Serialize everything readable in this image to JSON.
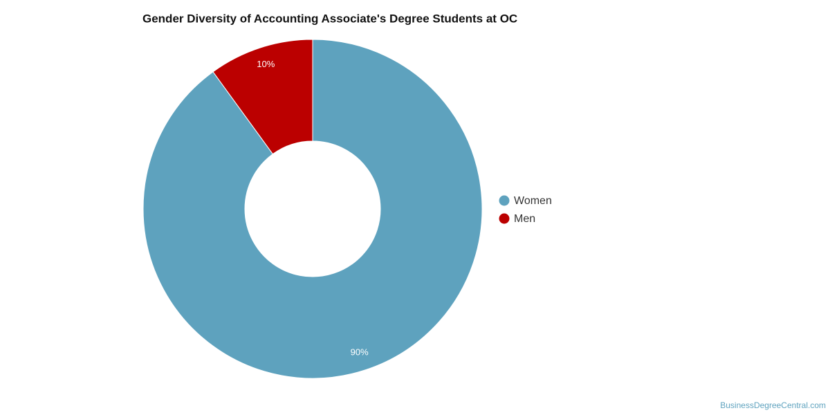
{
  "chart_data": {
    "type": "donut",
    "title": "Gender Diversity of Accounting Associate's Degree Students at OC",
    "categories": [
      "Women",
      "Men"
    ],
    "values": [
      90,
      10
    ],
    "value_labels": [
      "90%",
      "10%"
    ],
    "colors": [
      "#5ea2be",
      "#bb0000"
    ],
    "legend": "right"
  },
  "credit": "BusinessDegreeCentral.com"
}
